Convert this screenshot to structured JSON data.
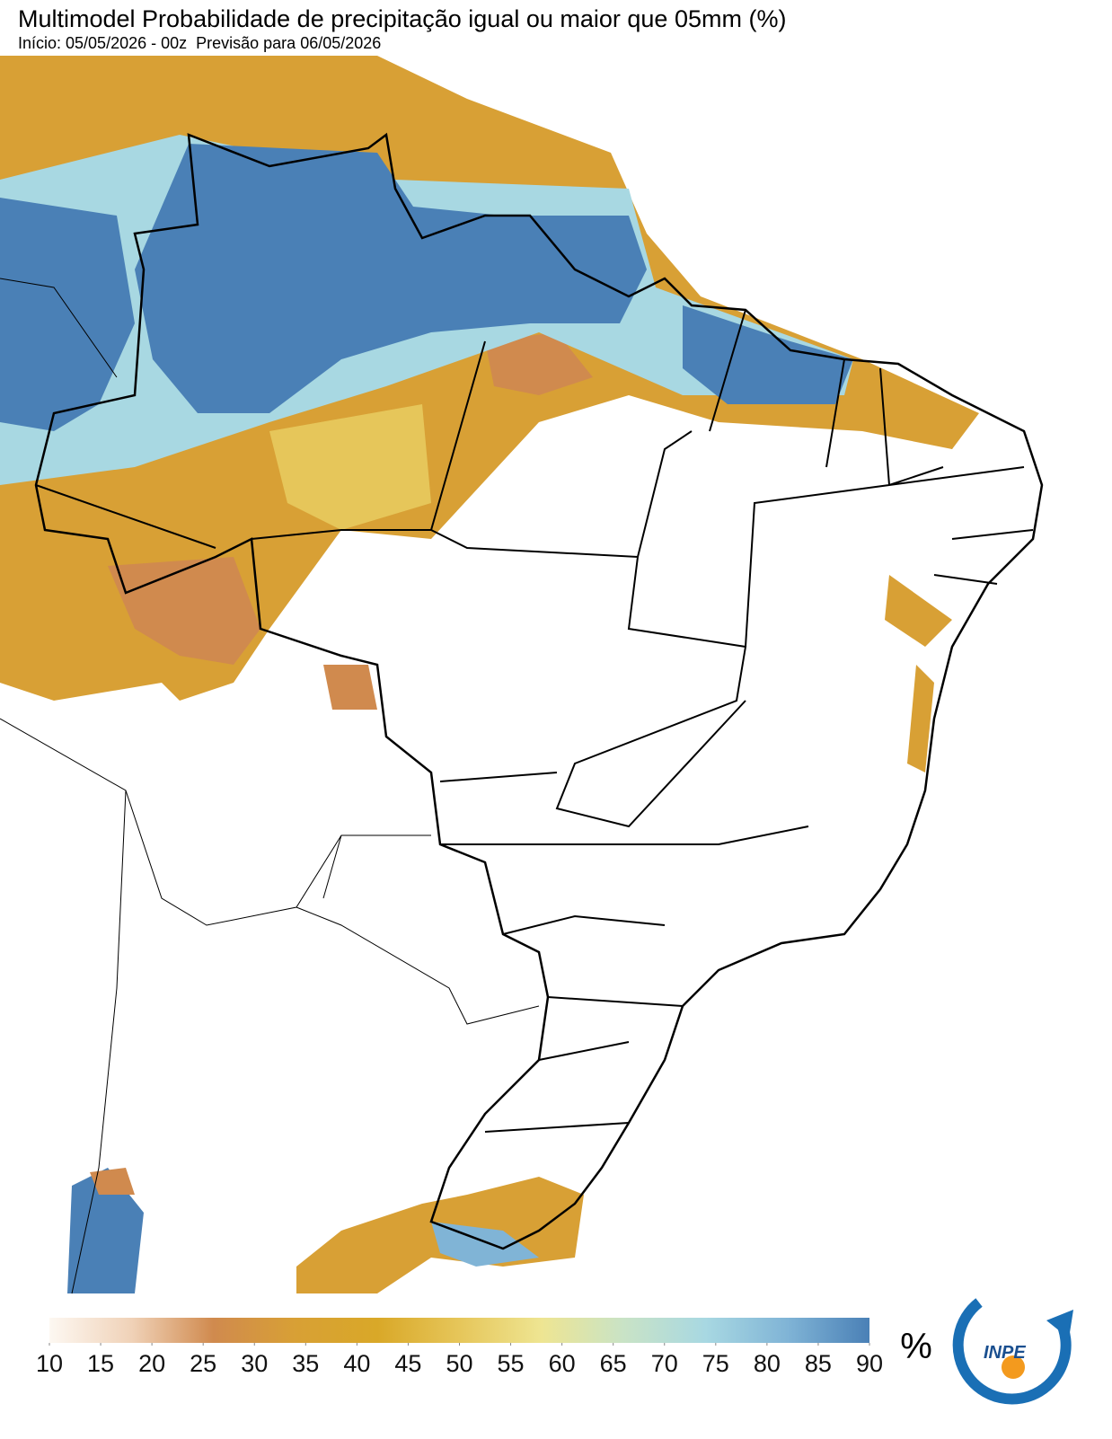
{
  "title": "Multimodel Probabilidade de precipitação igual ou maior que 05mm (%)",
  "subtitle": "Início: 05/05/2026 - 00z  Previsão para 06/05/2026",
  "colorbar": {
    "ticks": [
      10,
      15,
      20,
      25,
      30,
      35,
      40,
      45,
      50,
      55,
      60,
      65,
      70,
      75,
      80,
      85,
      90
    ],
    "colors": [
      "#fdf8f2",
      "#f0d2b8",
      "#d08a4e",
      "#d8a035",
      "#d9a828",
      "#e6c65a",
      "#eee592",
      "#c9e3c6",
      "#a8d8e2",
      "#80b4d6",
      "#4a80b6"
    ],
    "unit": "%"
  },
  "logo": "INPE"
}
